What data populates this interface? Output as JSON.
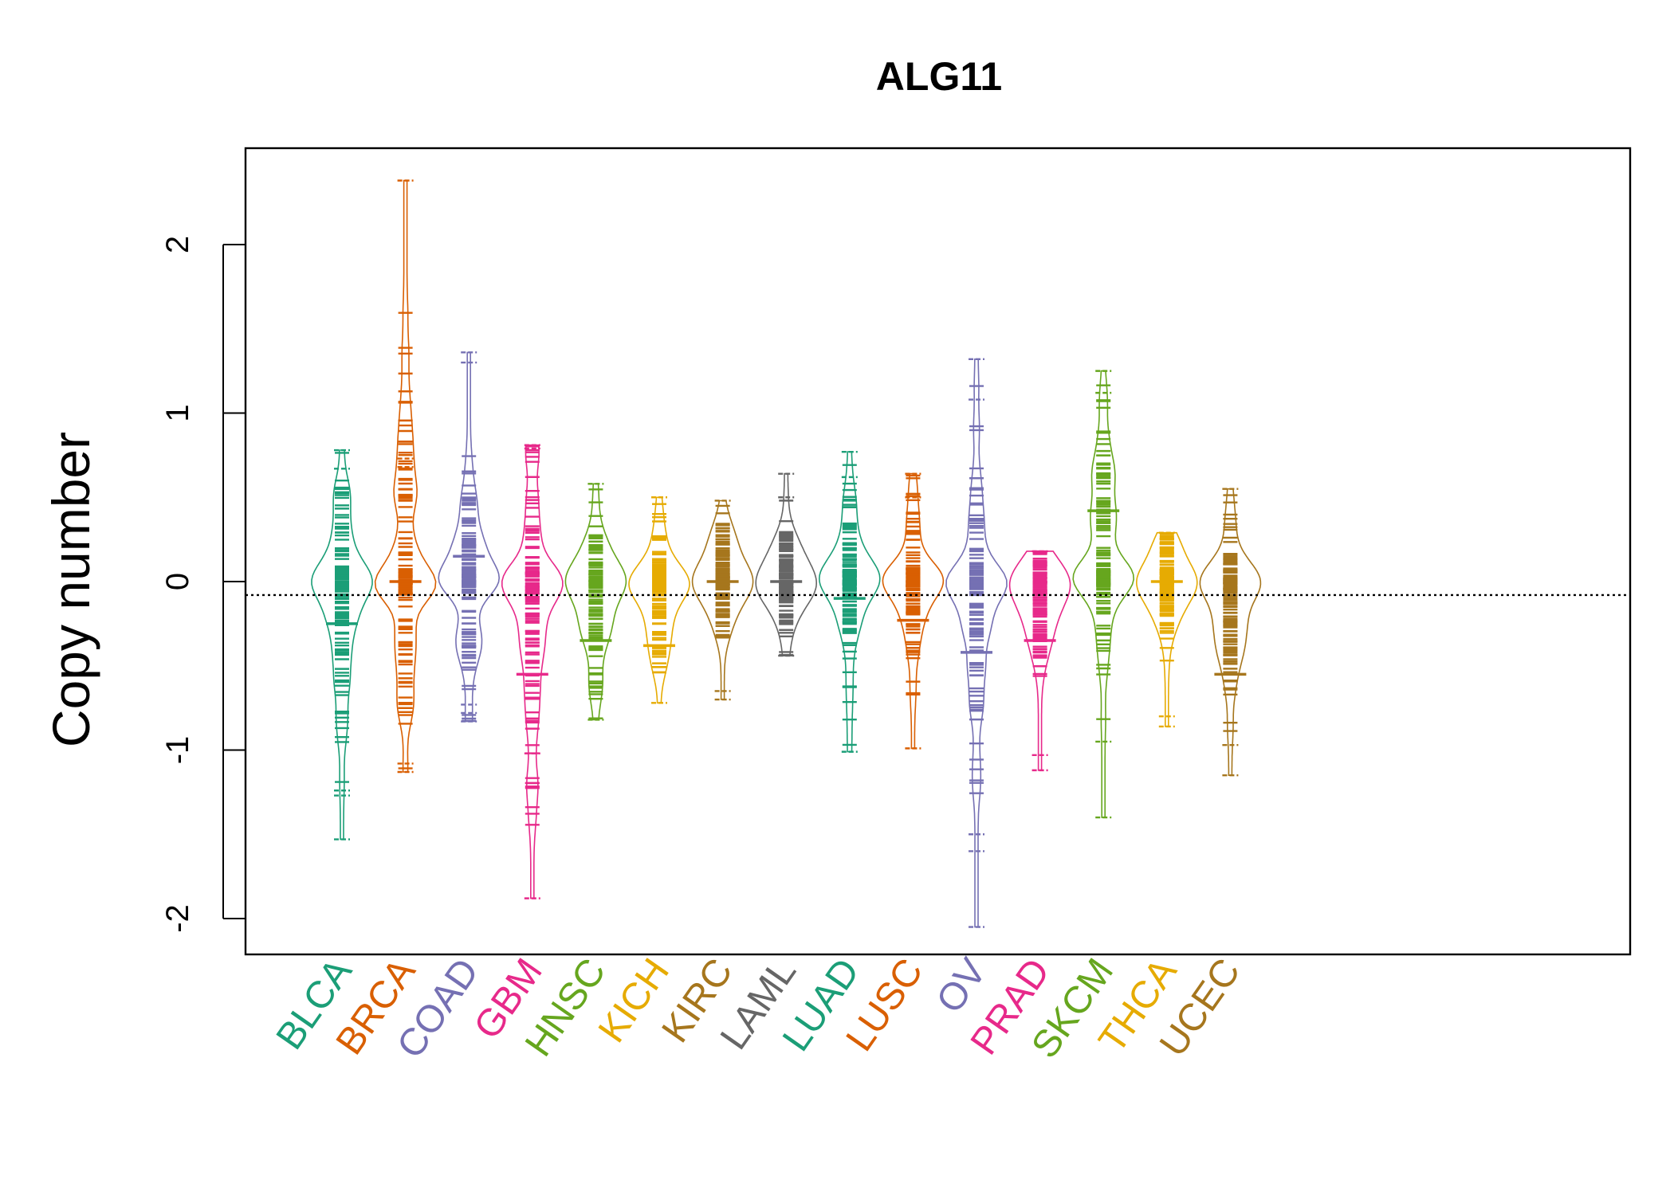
{
  "chart_data": {
    "type": "beanplot",
    "title": "ALG11",
    "xlabel": "",
    "ylabel": "Copy number",
    "ylim": [
      -2.2,
      2.6
    ],
    "yticks": [
      -2,
      -1,
      0,
      1,
      2
    ],
    "overall_mean": -0.08,
    "categories": [
      "BLCA",
      "BRCA",
      "COAD",
      "GBM",
      "HNSC",
      "KICH",
      "KIRC",
      "LAML",
      "LUAD",
      "LUSC",
      "OV",
      "PRAD",
      "SKCM",
      "THCA",
      "UCEC"
    ],
    "colors": {
      "BLCA": "#1B9E77",
      "BRCA": "#D95F02",
      "COAD": "#7570B3",
      "GBM": "#E7298A",
      "HNSC": "#66A61E",
      "KICH": "#E6AB02",
      "KIRC": "#A6761D",
      "LAML": "#666666",
      "LUAD": "#1B9E77",
      "LUSC": "#D95F02",
      "OV": "#7570B3",
      "PRAD": "#E7298A",
      "SKCM": "#66A61E",
      "THCA": "#E6AB02",
      "UCEC": "#A6761D"
    },
    "series": [
      {
        "name": "BLCA",
        "mean": -0.25,
        "min": -1.53,
        "max": 0.78,
        "extremes": [
          -1.53,
          -1.27,
          -1.24,
          0.67,
          0.78
        ]
      },
      {
        "name": "BRCA",
        "mean": 0.0,
        "min": -1.13,
        "max": 2.38,
        "extremes": [
          -1.13,
          -1.08,
          0.68,
          0.73,
          2.38
        ]
      },
      {
        "name": "COAD",
        "mean": 0.15,
        "min": -0.83,
        "max": 1.36,
        "extremes": [
          -0.83,
          -0.78,
          -0.73,
          1.3,
          1.36
        ]
      },
      {
        "name": "GBM",
        "mean": -0.55,
        "min": -1.88,
        "max": 0.81,
        "extremes": [
          -1.88,
          -1.02,
          0.79,
          0.81
        ]
      },
      {
        "name": "HNSC",
        "mean": -0.35,
        "min": -0.82,
        "max": 0.58,
        "extremes": [
          -0.82,
          0.58
        ]
      },
      {
        "name": "KICH",
        "mean": -0.38,
        "min": -0.72,
        "max": 0.5,
        "extremes": [
          -0.72,
          0.5
        ]
      },
      {
        "name": "KIRC",
        "mean": 0.0,
        "min": -0.7,
        "max": 0.48,
        "extremes": [
          -0.7,
          -0.65,
          0.48
        ]
      },
      {
        "name": "LAML",
        "mean": 0.0,
        "min": -0.44,
        "max": 0.64,
        "extremes": [
          -0.44,
          0.5,
          0.64
        ]
      },
      {
        "name": "LUAD",
        "mean": -0.1,
        "min": -1.01,
        "max": 0.77,
        "extremes": [
          -1.01,
          0.62,
          0.77
        ]
      },
      {
        "name": "LUSC",
        "mean": -0.23,
        "min": -0.99,
        "max": 0.64,
        "extremes": [
          -0.99,
          0.5,
          0.64
        ]
      },
      {
        "name": "OV",
        "mean": -0.42,
        "min": -2.05,
        "max": 1.32,
        "extremes": [
          -2.05,
          -1.6,
          -1.5,
          1.08,
          1.32
        ]
      },
      {
        "name": "PRAD",
        "mean": -0.35,
        "min": -1.12,
        "max": 0.18,
        "extremes": [
          -1.12,
          -1.03,
          0.18
        ]
      },
      {
        "name": "SKCM",
        "mean": 0.42,
        "min": -1.4,
        "max": 1.25,
        "extremes": [
          -1.4,
          -0.95,
          1.12,
          1.25
        ]
      },
      {
        "name": "THCA",
        "mean": 0.0,
        "min": -0.86,
        "max": 0.29,
        "extremes": [
          -0.86,
          -0.8,
          0.29
        ]
      },
      {
        "name": "UCEC",
        "mean": -0.55,
        "min": -1.15,
        "max": 0.55,
        "extremes": [
          -1.15,
          -0.97,
          0.55
        ]
      }
    ]
  }
}
